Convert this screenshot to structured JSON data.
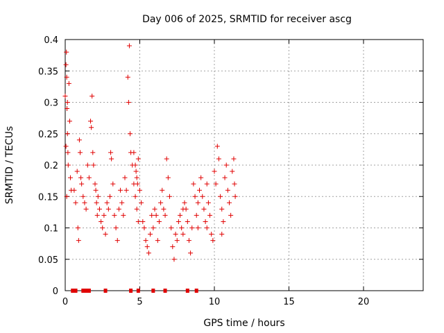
{
  "chart_data": {
    "type": "scatter",
    "title": "Day 006 of 2025, SRMTID for receiver ascg",
    "xlabel": "GPS time / hours",
    "ylabel": "SRMTID / TECUs",
    "xlim": [
      0,
      24
    ],
    "ylim": [
      0,
      0.4
    ],
    "xticks": [
      0,
      5,
      10,
      15,
      20
    ],
    "xtick_labels": [
      "0",
      "5",
      "10",
      "15",
      "20"
    ],
    "yticks": [
      0,
      0.05,
      0.1,
      0.15,
      0.2,
      0.25,
      0.3,
      0.35,
      0.4
    ],
    "ytick_labels": [
      "0",
      "0.05",
      "0.1",
      "0.15",
      "0.2",
      "0.25",
      "0.3",
      "0.35",
      "0.4"
    ],
    "grid": true,
    "marker_color": "#e00000",
    "series": [
      {
        "name": "SRMTID",
        "marker": "plus",
        "points": [
          [
            0.0,
            0.31
          ],
          [
            0.05,
            0.36
          ],
          [
            0.08,
            0.38
          ],
          [
            0.1,
            0.34
          ],
          [
            0.12,
            0.29
          ],
          [
            0.15,
            0.25
          ],
          [
            0.18,
            0.22
          ],
          [
            0.2,
            0.2
          ],
          [
            0.25,
            0.33
          ],
          [
            0.3,
            0.27
          ],
          [
            0.35,
            0.18
          ],
          [
            0.4,
            0.16
          ],
          [
            0.05,
            0.23
          ],
          [
            0.1,
            0.15
          ],
          [
            0.15,
            0.3
          ],
          [
            0.6,
            0.16
          ],
          [
            0.7,
            0.14
          ],
          [
            0.8,
            0.19
          ],
          [
            0.85,
            0.1
          ],
          [
            0.9,
            0.08
          ],
          [
            0.95,
            0.24
          ],
          [
            1.0,
            0.22
          ],
          [
            1.05,
            0.18
          ],
          [
            1.1,
            0.17
          ],
          [
            1.2,
            0.15
          ],
          [
            1.3,
            0.14
          ],
          [
            1.4,
            0.13
          ],
          [
            1.5,
            0.2
          ],
          [
            1.6,
            0.18
          ],
          [
            1.7,
            0.27
          ],
          [
            1.75,
            0.26
          ],
          [
            1.8,
            0.31
          ],
          [
            1.85,
            0.22
          ],
          [
            1.9,
            0.2
          ],
          [
            2.0,
            0.17
          ],
          [
            2.05,
            0.16
          ],
          [
            2.1,
            0.14
          ],
          [
            2.15,
            0.12
          ],
          [
            2.2,
            0.15
          ],
          [
            2.3,
            0.13
          ],
          [
            2.4,
            0.11
          ],
          [
            2.5,
            0.1
          ],
          [
            2.6,
            0.12
          ],
          [
            2.7,
            0.09
          ],
          [
            2.8,
            0.14
          ],
          [
            2.9,
            0.13
          ],
          [
            3.0,
            0.15
          ],
          [
            3.05,
            0.22
          ],
          [
            3.1,
            0.21
          ],
          [
            3.2,
            0.17
          ],
          [
            3.3,
            0.12
          ],
          [
            3.4,
            0.1
          ],
          [
            3.5,
            0.08
          ],
          [
            3.6,
            0.13
          ],
          [
            3.7,
            0.16
          ],
          [
            3.8,
            0.14
          ],
          [
            3.9,
            0.12
          ],
          [
            4.0,
            0.18
          ],
          [
            4.1,
            0.16
          ],
          [
            4.2,
            0.34
          ],
          [
            4.25,
            0.3
          ],
          [
            4.3,
            0.39
          ],
          [
            4.35,
            0.25
          ],
          [
            4.4,
            0.22
          ],
          [
            4.5,
            0.2
          ],
          [
            4.6,
            0.17
          ],
          [
            4.7,
            0.15
          ],
          [
            4.8,
            0.13
          ],
          [
            4.9,
            0.11
          ],
          [
            4.6,
            0.22
          ],
          [
            4.7,
            0.2
          ],
          [
            4.75,
            0.19
          ],
          [
            4.8,
            0.18
          ],
          [
            4.85,
            0.17
          ],
          [
            4.9,
            0.21
          ],
          [
            5.0,
            0.16
          ],
          [
            5.1,
            0.14
          ],
          [
            5.2,
            0.11
          ],
          [
            5.3,
            0.1
          ],
          [
            5.4,
            0.08
          ],
          [
            5.5,
            0.07
          ],
          [
            5.6,
            0.06
          ],
          [
            5.7,
            0.09
          ],
          [
            5.8,
            0.12
          ],
          [
            5.9,
            0.1
          ],
          [
            6.0,
            0.13
          ],
          [
            6.1,
            0.12
          ],
          [
            6.2,
            0.08
          ],
          [
            6.3,
            0.11
          ],
          [
            6.4,
            0.14
          ],
          [
            6.5,
            0.16
          ],
          [
            6.6,
            0.13
          ],
          [
            6.7,
            0.12
          ],
          [
            6.8,
            0.21
          ],
          [
            6.9,
            0.18
          ],
          [
            7.0,
            0.15
          ],
          [
            7.1,
            0.1
          ],
          [
            7.2,
            0.07
          ],
          [
            7.3,
            0.05
          ],
          [
            7.4,
            0.09
          ],
          [
            7.5,
            0.08
          ],
          [
            7.6,
            0.11
          ],
          [
            7.7,
            0.12
          ],
          [
            7.8,
            0.1
          ],
          [
            7.9,
            0.09
          ],
          [
            8.0,
            0.14
          ],
          [
            8.1,
            0.13
          ],
          [
            8.2,
            0.11
          ],
          [
            8.3,
            0.08
          ],
          [
            8.4,
            0.06
          ],
          [
            8.5,
            0.1
          ],
          [
            8.6,
            0.17
          ],
          [
            8.7,
            0.15
          ],
          [
            8.8,
            0.12
          ],
          [
            8.9,
            0.1
          ],
          [
            9.0,
            0.16
          ],
          [
            9.1,
            0.18
          ],
          [
            9.2,
            0.15
          ],
          [
            9.3,
            0.13
          ],
          [
            9.4,
            0.11
          ],
          [
            9.5,
            0.17
          ],
          [
            9.6,
            0.14
          ],
          [
            9.7,
            0.12
          ],
          [
            9.8,
            0.09
          ],
          [
            9.9,
            0.08
          ],
          [
            10.0,
            0.19
          ],
          [
            10.1,
            0.17
          ],
          [
            10.2,
            0.23
          ],
          [
            10.3,
            0.21
          ],
          [
            10.4,
            0.15
          ],
          [
            10.5,
            0.13
          ],
          [
            10.6,
            0.11
          ],
          [
            10.7,
            0.18
          ],
          [
            10.8,
            0.2
          ],
          [
            10.9,
            0.16
          ],
          [
            11.0,
            0.14
          ],
          [
            11.1,
            0.12
          ],
          [
            11.2,
            0.19
          ],
          [
            11.3,
            0.21
          ],
          [
            11.35,
            0.17
          ],
          [
            11.4,
            0.15
          ],
          [
            10.5,
            0.09
          ],
          [
            9.5,
            0.1
          ],
          [
            8.9,
            0.14
          ],
          [
            7.9,
            0.13
          ]
        ]
      },
      {
        "name": "zero markers",
        "marker": "square",
        "points": [
          [
            0.5,
            0
          ],
          [
            0.7,
            0
          ],
          [
            1.2,
            0
          ],
          [
            1.4,
            0
          ],
          [
            1.6,
            0
          ],
          [
            2.7,
            0
          ],
          [
            4.4,
            0
          ],
          [
            4.9,
            0
          ],
          [
            5.9,
            0
          ],
          [
            6.7,
            0
          ],
          [
            8.2,
            0
          ],
          [
            8.8,
            0
          ]
        ]
      }
    ]
  }
}
